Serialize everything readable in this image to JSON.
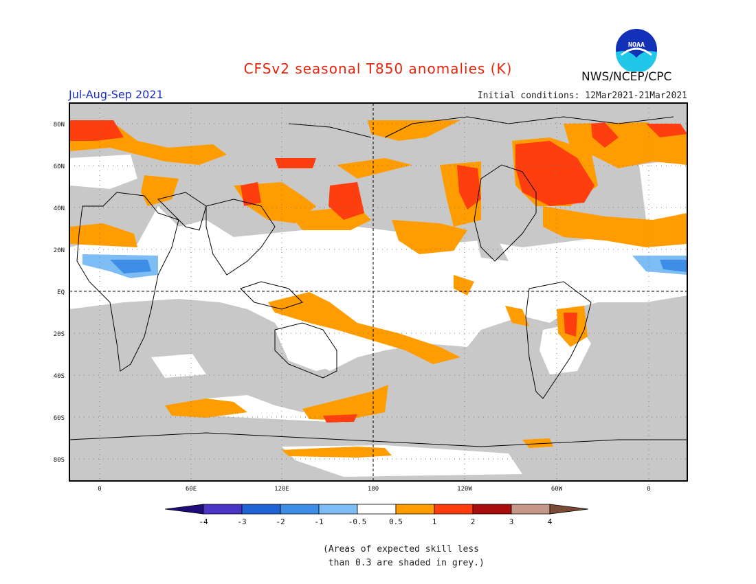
{
  "header": {
    "title": "CFSv2 seasonal T850 anomalies (K)",
    "season": "Jul-Aug-Sep 2021",
    "initial_conditions": "Initial conditions: 12Mar2021-21Mar2021",
    "agency": "NWS/NCEP/CPC",
    "logo_text": "NOAA"
  },
  "map": {
    "lat_labels": [
      "80N",
      "60N",
      "40N",
      "20N",
      "EQ",
      "20S",
      "40S",
      "60S",
      "80S"
    ],
    "lon_labels": [
      "0",
      "60E",
      "120E",
      "180",
      "120W",
      "60W",
      "0"
    ]
  },
  "legend": {
    "labels": [
      "-4",
      "-3",
      "-2",
      "-1",
      "-0.5",
      "0.5",
      "1",
      "2",
      "3",
      "4"
    ],
    "colors": {
      "below_-4": "#1f0c7a",
      "-4_-3": "#4a35c4",
      "-3_-2": "#1f63d6",
      "-2_-1": "#3e8ee8",
      "-1_-0.5": "#7dbdf4",
      "-0.5_0.5": "#ffffff",
      "0.5_1": "#ff9c00",
      "1_2": "#ff3e10",
      "2_3": "#a80e0e",
      "3_4": "#c6988a",
      "above_4": "#7a4a36"
    },
    "skill_mask_color": "#c8c8c8"
  },
  "footnote": {
    "line1": "(Areas of expected skill less",
    "line2": " than 0.3 are shaded in grey.)"
  }
}
